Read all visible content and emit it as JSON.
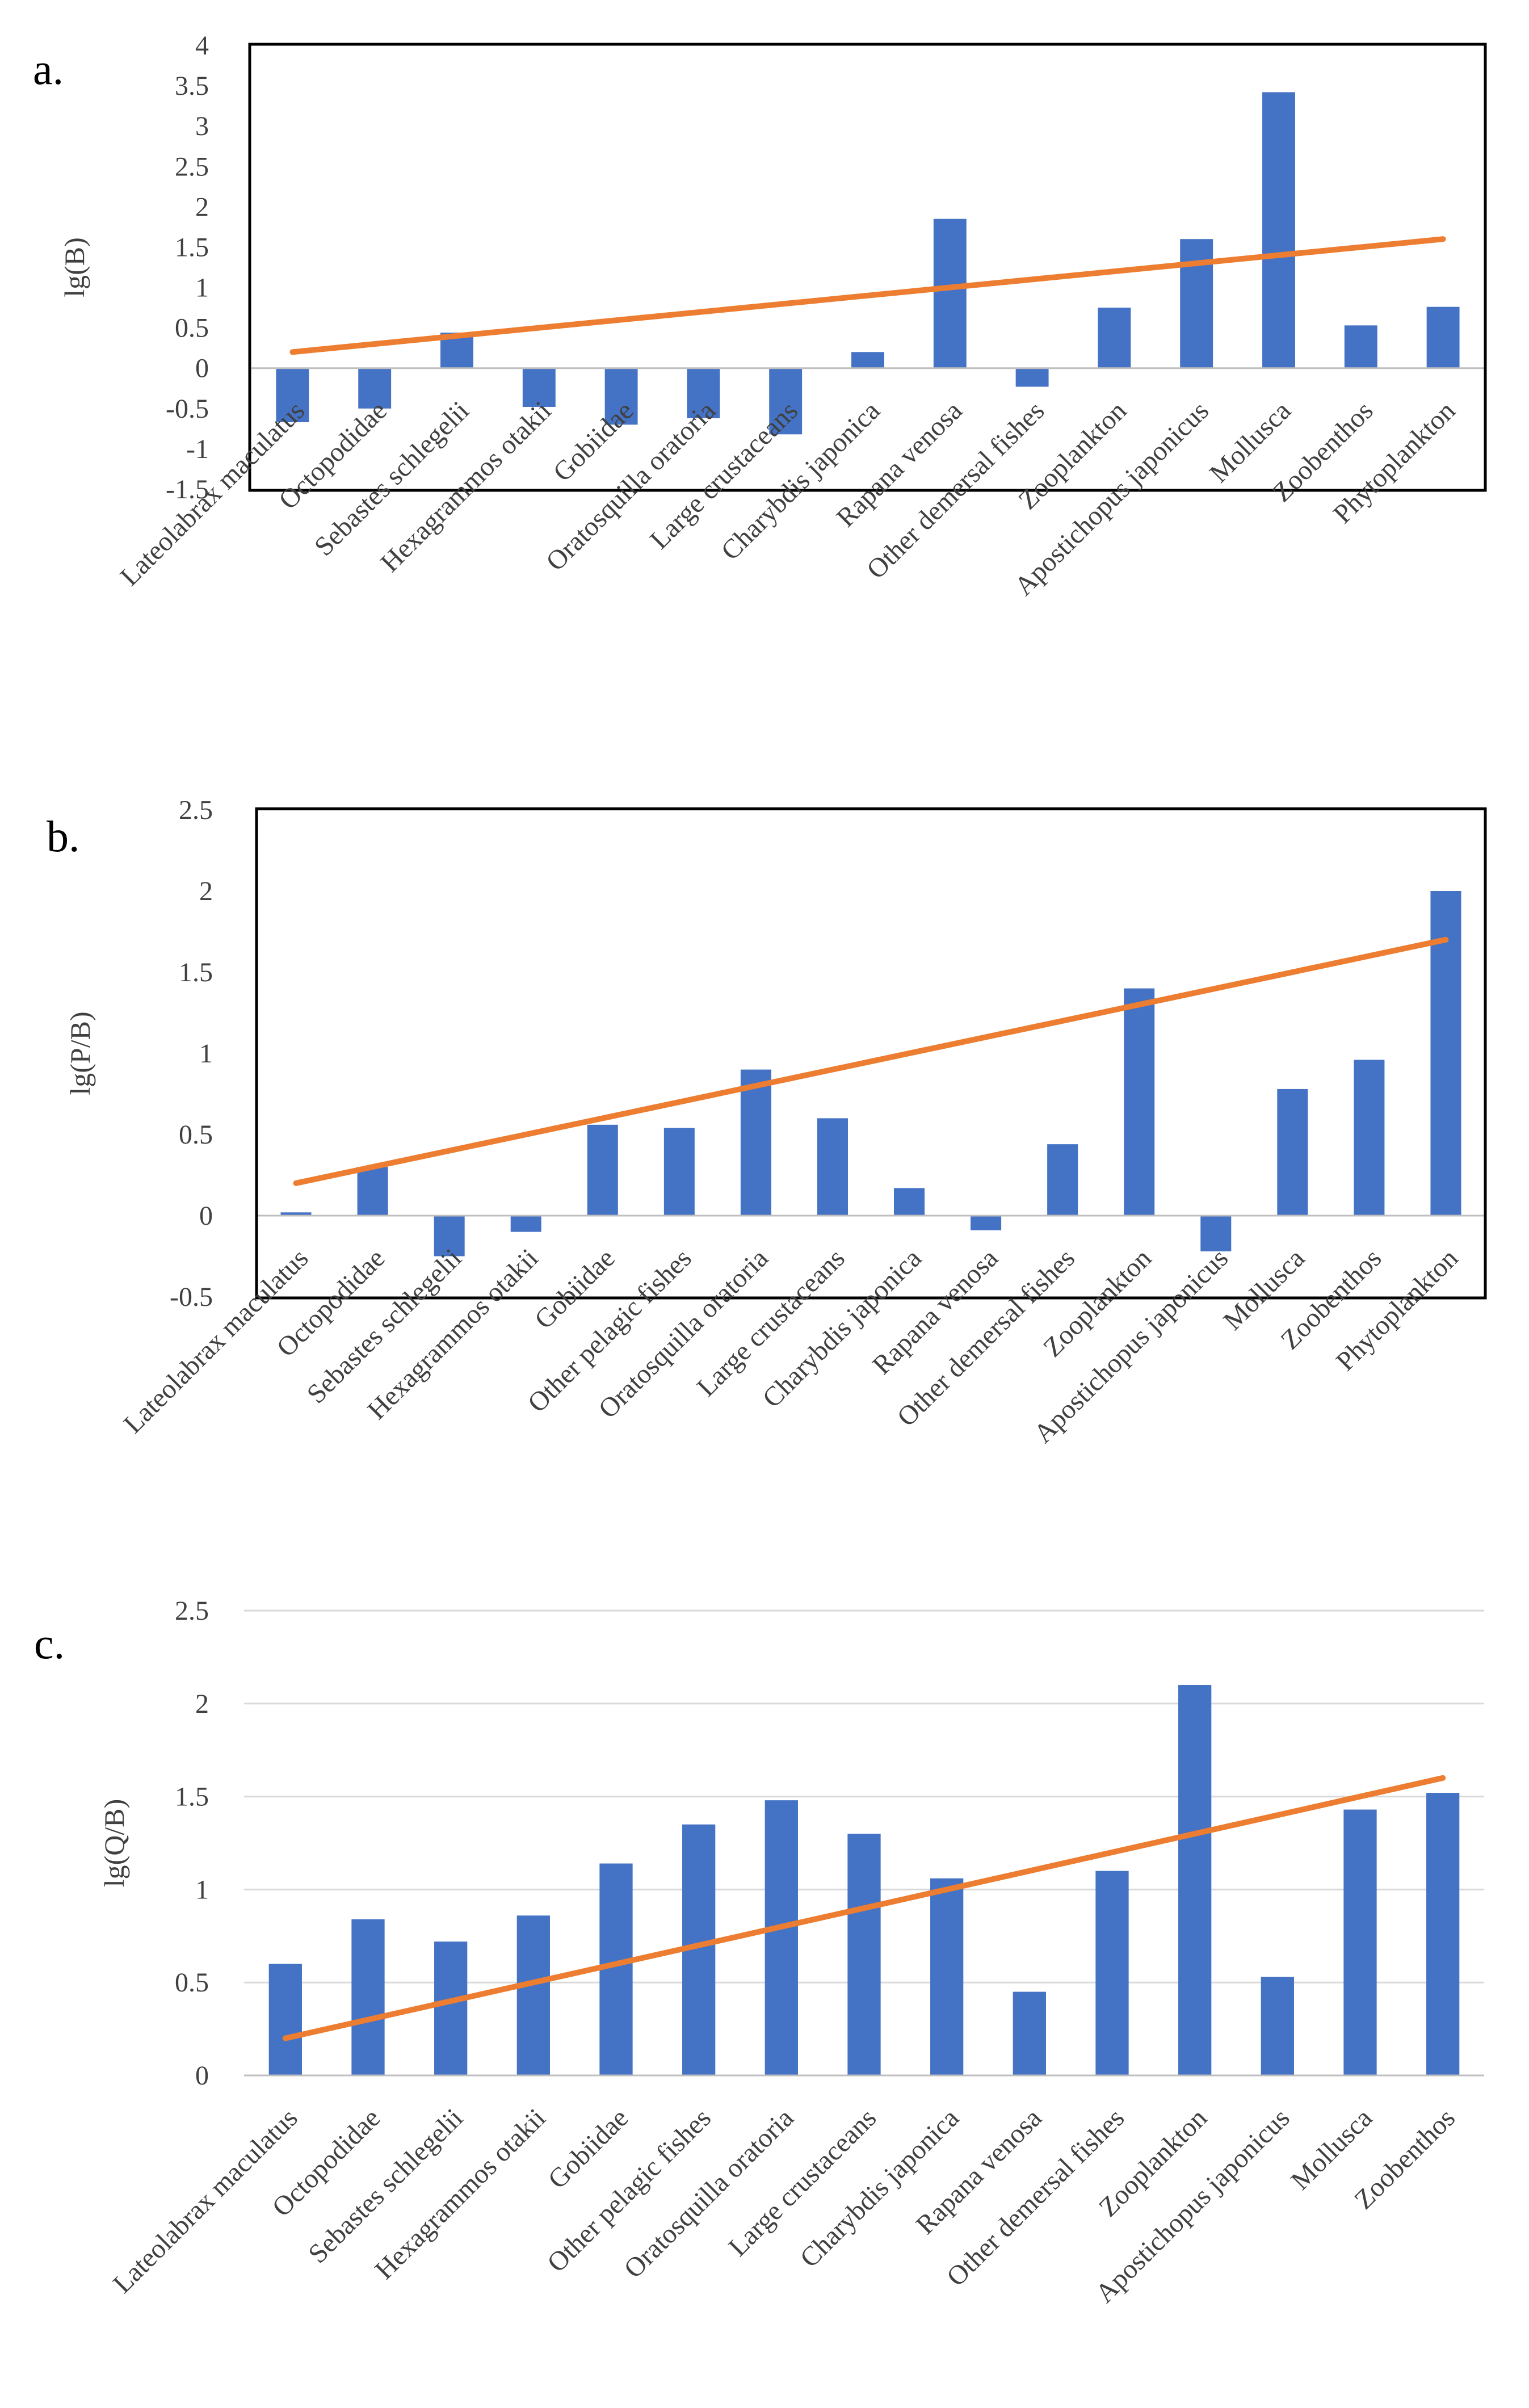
{
  "colors": {
    "bar": "#4472C4",
    "trend": "#ED7D31",
    "frame": "#000000",
    "grid": "#D9D9D9",
    "text": "#404040"
  },
  "chart_data": [
    {
      "panel_label": "a.",
      "type": "bar",
      "title": "",
      "xlabel": "",
      "ylabel": "lg(B)",
      "ylim": [
        -1.5,
        4
      ],
      "yticks": [
        4,
        3.5,
        3,
        2.5,
        2,
        1.5,
        1,
        0.5,
        0,
        -0.5,
        -1,
        -1.5
      ],
      "ytick_labels": [
        "4",
        "3.5",
        "3",
        "2.5",
        "2",
        "1.5",
        "1",
        "0.5",
        "0",
        "-0.5",
        "-1",
        "-1.5"
      ],
      "gridlines": false,
      "categories": [
        "Lateolabrax maculatus",
        "Octopodidae",
        "Sebastes schlegelii",
        "Hexagrammos otakii",
        "Gobiidae",
        "Oratosquilla oratoria",
        "Large crustaceans",
        "Charybdis japonica",
        "Rapana venosa",
        "Other demersal fishes",
        "Zooplankton",
        "Apostichopus japonicus",
        "Mollusca",
        "Zoobenthos",
        "Phytoplankton"
      ],
      "values": [
        -0.67,
        -0.5,
        0.44,
        -0.48,
        -0.7,
        -0.62,
        -0.82,
        0.2,
        1.85,
        -0.23,
        0.75,
        1.6,
        3.42,
        0.53,
        0.76
      ],
      "trendline": {
        "type": "linear",
        "start": 0.2,
        "end": 1.6
      }
    },
    {
      "panel_label": "b.",
      "type": "bar",
      "title": "",
      "xlabel": "",
      "ylabel": "lg(P/B)",
      "ylim": [
        -0.5,
        2.5
      ],
      "yticks": [
        2.5,
        2,
        1.5,
        1,
        0.5,
        0,
        -0.5
      ],
      "ytick_labels": [
        "2.5",
        "2",
        "1.5",
        "1",
        "0.5",
        "0",
        "-0.5"
      ],
      "gridlines": false,
      "categories": [
        "Lateolabrax maculatus",
        "Octopodidae",
        "Sebastes schlegelii",
        "Hexagrammos otakii",
        "Gobiidae",
        "Other pelagic fishes",
        "Oratosquilla oratoria",
        "Large crustaceans",
        "Charybdis japonica",
        "Rapana venosa",
        "Other demersal fishes",
        "Zooplankton",
        "Apostichopus japonicus",
        "Mollusca",
        "Zoobenthos",
        "Phytoplankton"
      ],
      "values": [
        0.02,
        0.3,
        -0.25,
        -0.1,
        0.56,
        0.54,
        0.9,
        0.6,
        0.17,
        -0.09,
        0.44,
        1.4,
        -0.22,
        0.78,
        0.96,
        2.0
      ],
      "trendline": {
        "type": "linear",
        "start": 0.2,
        "end": 1.7
      }
    },
    {
      "panel_label": "c.",
      "type": "bar",
      "title": "",
      "xlabel": "",
      "ylabel": "lg(Q/B)",
      "ylim": [
        0,
        2.5
      ],
      "yticks": [
        2.5,
        2,
        1.5,
        1,
        0.5,
        0
      ],
      "ytick_labels": [
        "2.5",
        "2",
        "1.5",
        "1",
        "0.5",
        "0"
      ],
      "gridlines": true,
      "categories": [
        "Lateolabrax maculatus",
        "Octopodidae",
        "Sebastes schlegelii",
        "Hexagrammos otakii",
        "Gobiidae",
        "Other pelagic fishes",
        "Oratosquilla oratoria",
        "Large crustaceans",
        "Charybdis japonica",
        "Rapana venosa",
        "Other demersal fishes",
        "Zooplankton",
        "Apostichopus japonicus",
        "Mollusca",
        "Zoobenthos"
      ],
      "values": [
        0.6,
        0.84,
        0.72,
        0.86,
        1.14,
        1.35,
        1.48,
        1.3,
        1.06,
        0.45,
        1.1,
        2.1,
        0.53,
        1.43,
        1.52
      ],
      "trendline": {
        "type": "linear",
        "start": 0.2,
        "end": 1.6
      }
    }
  ]
}
